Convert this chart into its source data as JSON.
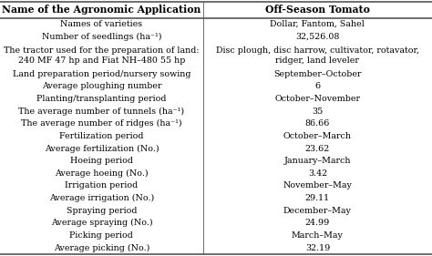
{
  "col1_header": "Name of the Agronomic Application",
  "col2_header": "Off-Season Tomato",
  "rows": [
    [
      "Names of varieties",
      "Dollar, Fantom, Sahel"
    ],
    [
      "Number of seedlings (ha⁻¹)",
      "32,526.08"
    ],
    [
      "The tractor used for the preparation of land:\n240 MF 47 hp and Fiat NH–480 55 hp",
      "Disc plough, disc harrow, cultivator, rotavator,\nridger, land leveler"
    ],
    [
      "Land preparation period/nursery sowing",
      "September–October"
    ],
    [
      "Average ploughing number",
      "6"
    ],
    [
      "Planting/transplanting period",
      "October–November"
    ],
    [
      "The average number of tunnels (ha⁻¹)",
      "35"
    ],
    [
      "The average number of ridges (ha⁻¹)",
      "86.66"
    ],
    [
      "Fertilization period",
      "October–March"
    ],
    [
      "Average fertilization (No.)",
      "23.62"
    ],
    [
      "Hoeing period",
      "January–March"
    ],
    [
      "Average hoeing (No.)",
      "3.42"
    ],
    [
      "Irrigation period",
      "November–May"
    ],
    [
      "Average irrigation (No.)",
      "29.11"
    ],
    [
      "Spraying period",
      "December–May"
    ],
    [
      "Average spraying (No.)",
      "24.99"
    ],
    [
      "Picking period",
      "March–May"
    ],
    [
      "Average picking (No.)",
      "32.19"
    ]
  ],
  "bg_color": "#ffffff",
  "line_color": "#555555",
  "text_color": "#000000",
  "font_size": 6.8,
  "header_font_size": 7.8,
  "col_split": 0.47,
  "fig_width": 4.74,
  "fig_height": 2.81,
  "dpi": 100
}
